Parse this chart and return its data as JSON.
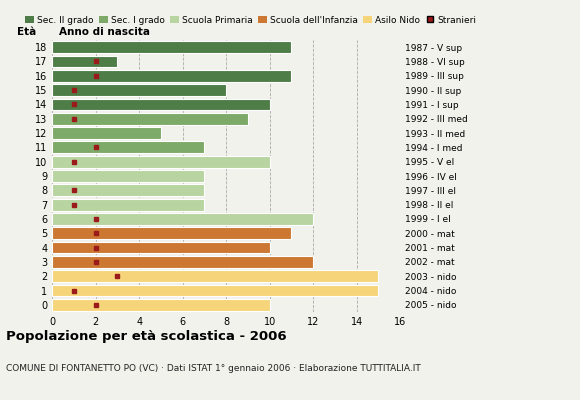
{
  "ages": [
    18,
    17,
    16,
    15,
    14,
    13,
    12,
    11,
    10,
    9,
    8,
    7,
    6,
    5,
    4,
    3,
    2,
    1,
    0
  ],
  "bar_values": [
    11,
    3,
    11,
    8,
    10,
    9,
    5,
    7,
    10,
    7,
    7,
    7,
    12,
    11,
    10,
    12,
    15,
    15,
    10
  ],
  "stranieri": [
    0,
    2,
    2,
    1,
    1,
    1,
    0,
    2,
    1,
    0,
    1,
    1,
    2,
    2,
    2,
    2,
    3,
    1,
    2
  ],
  "categories": {
    "Sec. II grado": {
      "ages": [
        14,
        15,
        16,
        17,
        18
      ],
      "color": "#4e7d47"
    },
    "Sec. I grado": {
      "ages": [
        11,
        12,
        13
      ],
      "color": "#7daa68"
    },
    "Scuola Primaria": {
      "ages": [
        6,
        7,
        8,
        9,
        10
      ],
      "color": "#b8d4a0"
    },
    "Scuola dell'Infanzia": {
      "ages": [
        3,
        4,
        5
      ],
      "color": "#cc7832"
    },
    "Asilo Nido": {
      "ages": [
        0,
        1,
        2
      ],
      "color": "#f5d47a"
    }
  },
  "right_labels": {
    "18": "1987 - V sup",
    "17": "1988 - VI sup",
    "16": "1989 - III sup",
    "15": "1990 - II sup",
    "14": "1991 - I sup",
    "13": "1992 - III med",
    "12": "1993 - II med",
    "11": "1994 - I med",
    "10": "1995 - V el",
    "9": "1996 - IV el",
    "8": "1997 - III el",
    "7": "1998 - II el",
    "6": "1999 - I el",
    "5": "2000 - mat",
    "4": "2001 - mat",
    "3": "2002 - mat",
    "2": "2003 - nido",
    "1": "2004 - nido",
    "0": "2005 - nido"
  },
  "xlim": [
    0,
    16
  ],
  "xticks": [
    0,
    2,
    4,
    6,
    8,
    10,
    12,
    14,
    16
  ],
  "title": "Popolazione per età scolastica - 2006",
  "subtitle": "COMUNE DI FONTANETTO PO (VC) · Dati ISTAT 1° gennaio 2006 · Elaborazione TUTTITALIA.IT",
  "ylabel": "Età",
  "right_header": "Anno di nascita",
  "bg_color": "#f2f2ec",
  "stranieri_color": "#9b1a1a",
  "legend_labels": [
    "Sec. II grado",
    "Sec. I grado",
    "Scuola Primaria",
    "Scuola dell'Infanzia",
    "Asilo Nido",
    "Stranieri"
  ],
  "legend_colors": [
    "#4e7d47",
    "#7daa68",
    "#b8d4a0",
    "#cc7832",
    "#f5d47a",
    "#9b1a1a"
  ]
}
